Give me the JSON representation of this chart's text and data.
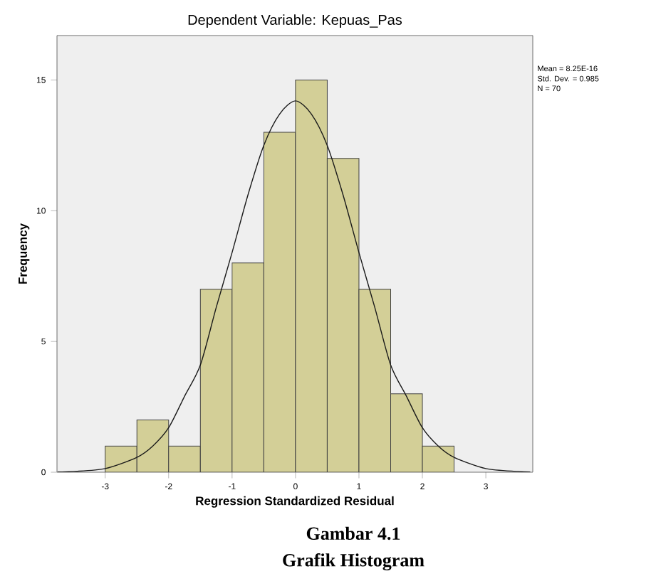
{
  "chart_data": {
    "type": "histogram",
    "title": "Dependent Variable: Kepuas_Pas",
    "xlabel": "Regression Standardized Residual",
    "ylabel": "Frequency",
    "bins": [
      -3,
      -2.5,
      -2,
      -1.5,
      -1,
      -0.5,
      0,
      0.5,
      1,
      1.5,
      2,
      2.5
    ],
    "values": [
      1,
      2,
      1,
      7,
      8,
      13,
      15,
      12,
      7,
      3,
      1
    ],
    "color": "#d3cf97",
    "series": [
      {
        "type": "line",
        "color": "#1a1a1a",
        "x": [
          -3.75,
          -3.5,
          -3,
          -2.5,
          -2.25,
          -2,
          -1.75,
          -1.5,
          -1.25,
          -1,
          -0.75,
          -0.5,
          -0.25,
          0,
          0.25,
          0.5,
          0.75,
          1,
          1.25,
          1.5,
          1.75,
          2,
          2.25,
          2.5,
          3,
          3.5,
          3.7
        ],
        "values": [
          0.01,
          0.03,
          0.14,
          0.57,
          1.0,
          1.7,
          2.9,
          4.1,
          6.3,
          8.4,
          10.6,
          12.5,
          13.7,
          14.2,
          13.7,
          12.5,
          10.6,
          8.4,
          6.3,
          4.1,
          2.9,
          1.7,
          1.0,
          0.57,
          0.14,
          0.03,
          0.01
        ]
      }
    ],
    "xlim": [
      -3.76,
      3.74
    ],
    "ylim": [
      0,
      16.7
    ],
    "xticks": [
      -3,
      -2,
      -1,
      0,
      1,
      2,
      3
    ],
    "yticks": [
      0,
      5,
      10,
      15
    ],
    "marker": "none",
    "line_style": "solid",
    "grid": false,
    "annotations": [
      "Mean = 8.25E-16",
      "Std. Dev. = 0.985",
      "N = 70",
      "Gambar 4.1",
      "Grafik Histogram"
    ]
  }
}
